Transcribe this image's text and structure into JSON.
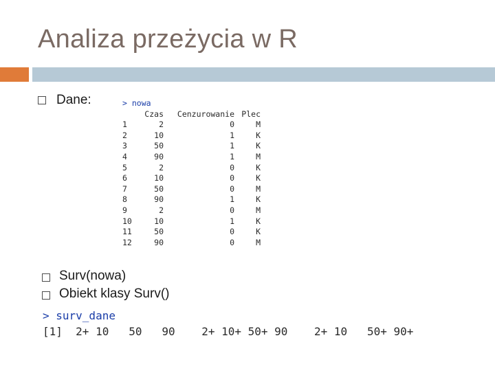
{
  "slide": {
    "title": "Analiza przeżycia w R",
    "accent_colors": {
      "orange": "#e07b39",
      "blue": "#b6c9d6"
    }
  },
  "bullets": [
    {
      "icon": "square-bullet-icon",
      "text": "Dane:"
    },
    {
      "icon": "square-bullet-icon",
      "text": "Surv(nowa)"
    },
    {
      "icon": "square-bullet-icon",
      "text": "Obiekt klasy Surv()"
    }
  ],
  "console_table": {
    "prompt": "> nowa",
    "headers": [
      "Czas",
      "Cenzurowanie",
      "Plec"
    ],
    "rows": [
      {
        "idx": "1",
        "czas": "2",
        "cenz": "0",
        "plec": "M"
      },
      {
        "idx": "2",
        "czas": "10",
        "cenz": "1",
        "plec": "K"
      },
      {
        "idx": "3",
        "czas": "50",
        "cenz": "1",
        "plec": "K"
      },
      {
        "idx": "4",
        "czas": "90",
        "cenz": "1",
        "plec": "M"
      },
      {
        "idx": "5",
        "czas": "2",
        "cenz": "0",
        "plec": "K"
      },
      {
        "idx": "6",
        "czas": "10",
        "cenz": "0",
        "plec": "K"
      },
      {
        "idx": "7",
        "czas": "50",
        "cenz": "0",
        "plec": "M"
      },
      {
        "idx": "8",
        "czas": "90",
        "cenz": "1",
        "plec": "K"
      },
      {
        "idx": "9",
        "czas": "2",
        "cenz": "0",
        "plec": "M"
      },
      {
        "idx": "10",
        "czas": "10",
        "cenz": "1",
        "plec": "K"
      },
      {
        "idx": "11",
        "czas": "50",
        "cenz": "0",
        "plec": "K"
      },
      {
        "idx": "12",
        "czas": "90",
        "cenz": "0",
        "plec": "M"
      }
    ]
  },
  "console_surv": {
    "prompt": "> surv_dane",
    "output": "[1]  2+ 10   50   90    2+ 10+ 50+ 90    2+ 10   50+ 90+"
  }
}
